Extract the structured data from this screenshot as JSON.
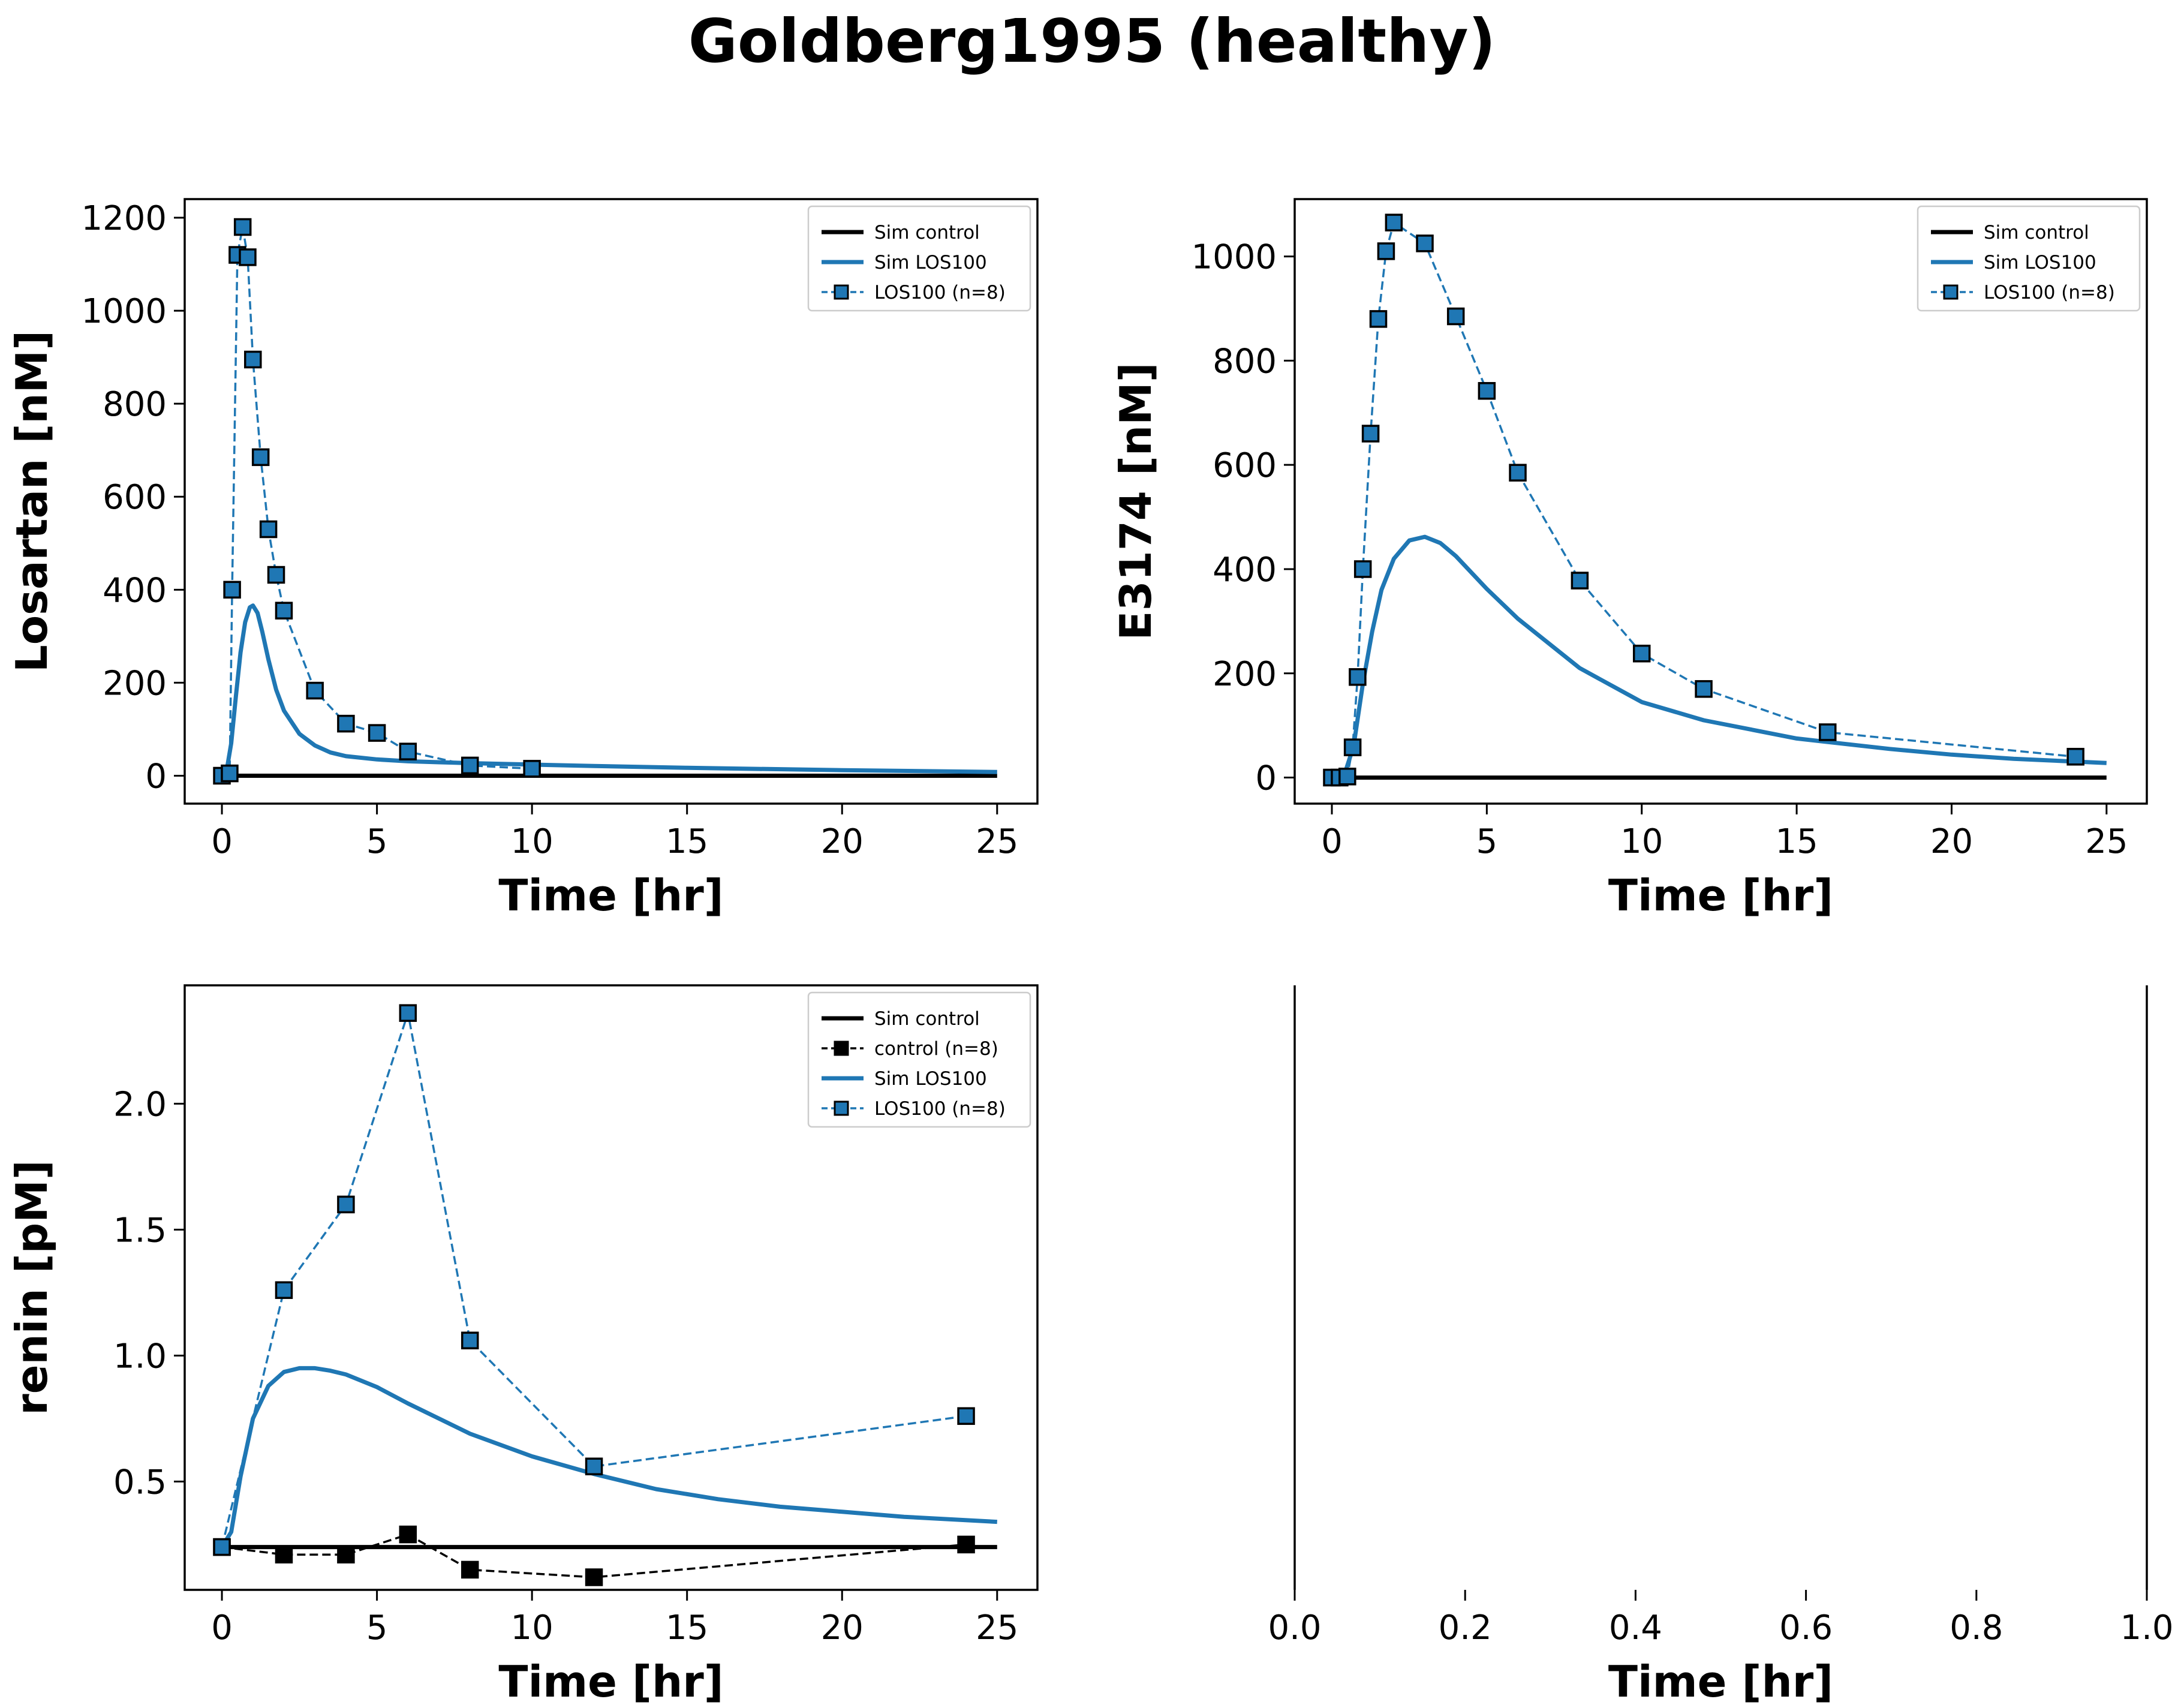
{
  "figure": {
    "title": "Goldberg1995 (healthy)",
    "colors": {
      "sim_control": "#000000",
      "sim_los": "#1f77b4",
      "data_los_line": "#1f77b4",
      "data_los_marker": "#1f77b4",
      "data_control": "#000000"
    }
  },
  "chart_data": [
    {
      "type": "line",
      "panel": "top-left",
      "xlabel": "Time [hr]",
      "ylabel": "Losartan [nM]",
      "xlim": [
        -1.2,
        26.3
      ],
      "ylim": [
        -60,
        1240
      ],
      "xticks": [
        0,
        5,
        10,
        15,
        20,
        25
      ],
      "yticks": [
        0,
        200,
        400,
        600,
        800,
        1000,
        1200
      ],
      "legend_position": "top-right",
      "series": [
        {
          "name": "Sim control",
          "style": "solid-black",
          "x": [
            0,
            25
          ],
          "y": [
            0,
            0
          ]
        },
        {
          "name": "Sim LOS100",
          "style": "solid-blue",
          "x": [
            0,
            0.15,
            0.3,
            0.45,
            0.6,
            0.75,
            0.9,
            1.0,
            1.15,
            1.3,
            1.5,
            1.75,
            2.0,
            2.5,
            3.0,
            3.5,
            4.0,
            5.0,
            6.0,
            7.0,
            8.0,
            10.0,
            12.0,
            15.0,
            20.0,
            25.0
          ],
          "y": [
            0,
            10,
            70,
            170,
            265,
            330,
            362,
            366,
            350,
            310,
            250,
            185,
            140,
            90,
            65,
            50,
            42,
            35,
            31,
            29,
            27,
            24,
            21,
            17,
            12,
            8
          ]
        },
        {
          "name": "LOS100 (n=8)",
          "style": "dashed-blue-square",
          "x": [
            0,
            0.25,
            0.33,
            0.5,
            0.67,
            0.83,
            1.0,
            1.25,
            1.5,
            1.75,
            2.0,
            3.0,
            4.0,
            5.0,
            6.0,
            8.0,
            10.0
          ],
          "y": [
            0,
            5,
            400,
            1120,
            1180,
            1115,
            895,
            685,
            530,
            432,
            355,
            183,
            112,
            92,
            52,
            22,
            15
          ]
        }
      ]
    },
    {
      "type": "line",
      "panel": "top-right",
      "xlabel": "Time [hr]",
      "ylabel": "E3174 [nM]",
      "xlim": [
        -1.2,
        26.3
      ],
      "ylim": [
        -50,
        1110
      ],
      "xticks": [
        0,
        5,
        10,
        15,
        20,
        25
      ],
      "yticks": [
        0,
        200,
        400,
        600,
        800,
        1000
      ],
      "legend_position": "top-right",
      "series": [
        {
          "name": "Sim control",
          "style": "solid-black",
          "x": [
            0,
            25
          ],
          "y": [
            0,
            0
          ]
        },
        {
          "name": "Sim LOS100",
          "style": "solid-blue",
          "x": [
            0,
            0.4,
            0.7,
            1.0,
            1.3,
            1.6,
            2.0,
            2.5,
            3.0,
            3.5,
            4.0,
            5.0,
            6.0,
            8.0,
            10.0,
            12.0,
            15.0,
            18.0,
            20.0,
            22.0,
            25.0
          ],
          "y": [
            0,
            5,
            60,
            180,
            280,
            360,
            420,
            455,
            462,
            450,
            425,
            362,
            305,
            210,
            145,
            110,
            75,
            55,
            44,
            36,
            28
          ]
        },
        {
          "name": "LOS100 (n=8)",
          "style": "dashed-blue-square",
          "x": [
            0,
            0.25,
            0.5,
            0.67,
            0.83,
            1.0,
            1.25,
            1.5,
            1.75,
            2.0,
            3.0,
            4.0,
            5.0,
            6.0,
            8.0,
            10.0,
            12.0,
            16.0,
            24.0
          ],
          "y": [
            0,
            0,
            2,
            58,
            193,
            400,
            660,
            880,
            1010,
            1065,
            1025,
            885,
            742,
            585,
            378,
            238,
            170,
            87,
            40
          ]
        }
      ]
    },
    {
      "type": "line",
      "panel": "bottom-left",
      "xlabel": "Time [hr]",
      "ylabel": "renin [pM]",
      "xlim": [
        -1.2,
        26.3
      ],
      "ylim": [
        0.07,
        2.47
      ],
      "xticks": [
        0,
        5,
        10,
        15,
        20,
        25
      ],
      "yticks": [
        0.5,
        1.0,
        1.5,
        2.0
      ],
      "legend_position": "top-right",
      "series": [
        {
          "name": "Sim control",
          "style": "solid-black",
          "x": [
            0,
            25
          ],
          "y": [
            0.24,
            0.24
          ]
        },
        {
          "name": "control (n=8)",
          "style": "dashed-black-square",
          "x": [
            0,
            2,
            4,
            6,
            8,
            12,
            24
          ],
          "y": [
            0.24,
            0.21,
            0.21,
            0.29,
            0.15,
            0.12,
            0.25
          ]
        },
        {
          "name": "Sim LOS100",
          "style": "solid-blue",
          "x": [
            0,
            0.3,
            0.6,
            1.0,
            1.5,
            2.0,
            2.5,
            3.0,
            3.5,
            4.0,
            5.0,
            6.0,
            7.0,
            8.0,
            10.0,
            12.0,
            14.0,
            16.0,
            18.0,
            20.0,
            22.0,
            25.0
          ],
          "y": [
            0.24,
            0.3,
            0.52,
            0.75,
            0.88,
            0.935,
            0.95,
            0.95,
            0.94,
            0.925,
            0.875,
            0.81,
            0.75,
            0.69,
            0.6,
            0.53,
            0.47,
            0.43,
            0.4,
            0.38,
            0.36,
            0.34
          ]
        },
        {
          "name": "LOS100 (n=8)",
          "style": "dashed-blue-square",
          "x": [
            0,
            2,
            4,
            6,
            8,
            12,
            24
          ],
          "y": [
            0.24,
            1.26,
            1.6,
            2.36,
            1.06,
            0.56,
            0.76
          ]
        }
      ]
    },
    {
      "type": "line",
      "panel": "bottom-right",
      "xlabel": "Time [hr]",
      "ylabel": "",
      "xlim": [
        0,
        1
      ],
      "xticks": [
        0.0,
        0.2,
        0.4,
        0.6,
        0.8,
        1.0
      ],
      "xticklabels": [
        "0.0",
        "0.2",
        "0.4",
        "0.6",
        "0.8",
        "1.0"
      ],
      "series": []
    }
  ]
}
